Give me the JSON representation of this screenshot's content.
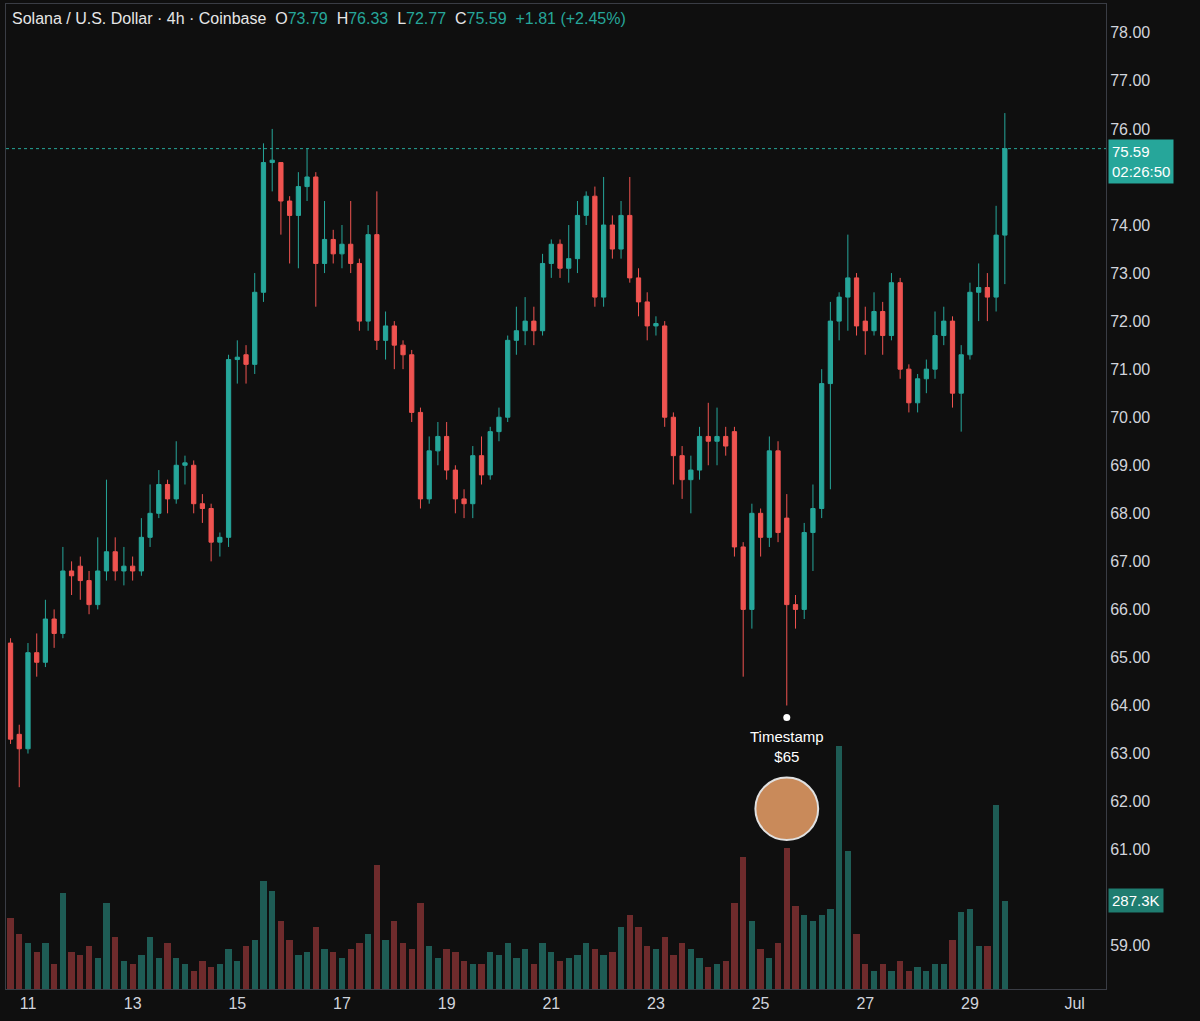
{
  "chart_data": {
    "type": "candlestick",
    "title": "Solana / U.S. Dollar · 4h · Coinbase",
    "ohlc_header": [
      [
        "O",
        "73.79"
      ],
      [
        "H",
        "76.33"
      ],
      [
        "L",
        "72.77"
      ],
      [
        "C",
        "75.59"
      ]
    ],
    "change": "+1.81 (+2.45%)",
    "x": [
      10.667,
      10.833,
      11,
      11.167,
      11.333,
      11.5,
      11.667,
      11.833,
      12,
      12.167,
      12.333,
      12.5,
      12.667,
      12.833,
      13,
      13.167,
      13.333,
      13.5,
      13.667,
      13.833,
      14,
      14.167,
      14.333,
      14.5,
      14.667,
      14.833,
      15,
      15.167,
      15.333,
      15.5,
      15.667,
      15.833,
      16,
      16.167,
      16.333,
      16.5,
      16.667,
      16.833,
      17,
      17.167,
      17.333,
      17.5,
      17.667,
      17.833,
      18,
      18.167,
      18.333,
      18.5,
      18.667,
      18.833,
      19,
      19.167,
      19.333,
      19.5,
      19.667,
      19.833,
      20,
      20.167,
      20.333,
      20.5,
      20.667,
      20.833,
      21,
      21.167,
      21.333,
      21.5,
      21.667,
      21.833,
      22,
      22.167,
      22.333,
      22.5,
      22.667,
      22.833,
      23,
      23.167,
      23.333,
      23.5,
      23.667,
      23.833,
      24,
      24.167,
      24.333,
      24.5,
      24.667,
      24.833,
      25,
      25.167,
      25.333,
      25.5,
      25.667,
      25.833,
      26,
      26.167,
      26.333,
      26.5,
      26.667,
      26.833,
      27,
      27.167,
      27.333,
      27.5,
      27.667,
      27.833,
      28,
      28.167,
      28.333,
      28.5,
      28.667,
      28.833,
      29,
      29.167,
      29.333,
      29.5,
      29.667
    ],
    "series": [
      {
        "type": "candlestick",
        "color": {
          "up": "#26a69a",
          "down": "#ef5350"
        },
        "open": [
          65.3,
          63.4,
          63.1,
          65.1,
          64.9,
          65.8,
          65.5,
          66.8,
          66.9,
          66.6,
          66.1,
          66.8,
          67.2,
          66.8,
          66.9,
          66.8,
          67.5,
          68.0,
          68.6,
          68.3,
          69.0,
          69.0,
          68.2,
          68.1,
          67.4,
          67.5,
          71.2,
          71.3,
          71.1,
          72.6,
          75.3,
          75.3,
          74.5,
          74.2,
          74.8,
          75.0,
          73.2,
          73.7,
          73.4,
          73.6,
          73.2,
          72.0,
          73.8,
          71.6,
          71.9,
          71.5,
          71.3,
          70.1,
          68.3,
          69.3,
          69.6,
          68.9,
          68.3,
          68.2,
          69.2,
          68.8,
          69.7,
          70.0,
          71.6,
          71.8,
          72.0,
          71.8,
          73.2,
          73.6,
          73.1,
          73.3,
          74.2,
          74.6,
          72.5,
          74.0,
          73.5,
          74.2,
          72.9,
          72.4,
          71.9,
          71.9,
          70.0,
          69.2,
          68.7,
          68.9,
          69.6,
          69.5,
          69.6,
          69.7,
          67.3,
          66.0,
          68.0,
          67.5,
          69.3,
          67.9,
          66.1,
          66.0,
          67.6,
          68.1,
          70.7,
          72.0,
          72.5,
          72.9,
          72.0,
          71.8,
          72.2,
          71.7,
          72.8,
          71.0,
          70.3,
          70.8,
          71.0,
          71.7,
          72.0,
          70.5,
          71.3,
          72.6,
          72.7,
          72.5,
          73.79
        ],
        "high": [
          65.4,
          63.6,
          65.3,
          65.5,
          66.2,
          66.0,
          67.3,
          67.0,
          67.1,
          66.8,
          67.5,
          68.7,
          67.5,
          67.3,
          67.1,
          67.9,
          68.6,
          68.9,
          68.7,
          69.5,
          69.2,
          69.1,
          68.4,
          68.2,
          67.6,
          71.3,
          71.6,
          71.5,
          73.0,
          75.7,
          76.0,
          75.3,
          74.6,
          75.1,
          75.6,
          75.1,
          74.5,
          73.9,
          74.0,
          74.5,
          73.3,
          74.0,
          74.7,
          72.2,
          72.0,
          71.6,
          71.4,
          70.2,
          69.6,
          69.9,
          69.9,
          69.0,
          68.5,
          69.4,
          69.6,
          69.8,
          70.2,
          71.7,
          72.3,
          72.5,
          72.3,
          73.4,
          73.7,
          73.7,
          74.0,
          74.5,
          74.7,
          74.8,
          75.0,
          74.2,
          74.5,
          75.0,
          73.1,
          72.6,
          72.1,
          72.0,
          70.1,
          69.4,
          69.2,
          69.8,
          70.3,
          70.2,
          69.8,
          69.8,
          67.4,
          68.2,
          68.1,
          69.6,
          69.5,
          68.4,
          66.3,
          67.8,
          68.6,
          71.0,
          72.4,
          72.6,
          73.8,
          73.0,
          72.3,
          72.6,
          72.4,
          73.0,
          72.9,
          71.1,
          70.9,
          71.2,
          72.2,
          72.3,
          72.1,
          71.5,
          72.8,
          73.2,
          73.0,
          74.4,
          76.33
        ],
        "low": [
          63.2,
          62.3,
          63.0,
          64.6,
          64.8,
          65.2,
          65.4,
          66.3,
          66.2,
          65.9,
          66.0,
          66.6,
          66.6,
          66.5,
          66.6,
          66.7,
          67.3,
          67.9,
          68.0,
          68.2,
          68.6,
          68.0,
          67.8,
          67.0,
          67.1,
          67.3,
          70.7,
          70.7,
          70.9,
          72.4,
          74.7,
          73.8,
          73.2,
          73.1,
          74.5,
          72.3,
          73.0,
          73.2,
          73.1,
          73.0,
          71.8,
          71.8,
          71.4,
          71.2,
          71.0,
          71.0,
          69.9,
          68.1,
          68.2,
          69.0,
          68.7,
          68.0,
          67.9,
          67.9,
          68.6,
          68.7,
          69.5,
          69.9,
          71.3,
          71.5,
          71.5,
          71.7,
          72.9,
          72.9,
          72.8,
          73.0,
          74.0,
          72.3,
          72.3,
          73.3,
          73.3,
          72.8,
          72.1,
          71.6,
          71.7,
          69.8,
          68.6,
          68.3,
          68.0,
          68.7,
          69.0,
          69.0,
          69.2,
          67.1,
          64.6,
          65.6,
          67.1,
          67.3,
          67.4,
          64.0,
          65.6,
          65.8,
          66.8,
          67.9,
          68.5,
          71.6,
          71.8,
          71.7,
          71.3,
          71.7,
          71.3,
          71.6,
          70.8,
          70.1,
          70.1,
          70.5,
          70.8,
          71.5,
          70.2,
          69.7,
          71.2,
          72.0,
          72.0,
          72.2,
          72.77
        ],
        "close": [
          63.3,
          63.1,
          65.1,
          64.9,
          65.8,
          65.5,
          66.8,
          66.7,
          66.6,
          66.1,
          66.8,
          67.2,
          66.8,
          66.9,
          66.8,
          67.5,
          68.0,
          68.6,
          68.3,
          69.0,
          69.05,
          68.2,
          68.1,
          67.4,
          67.5,
          71.2,
          71.25,
          71.1,
          72.6,
          75.3,
          75.35,
          74.5,
          74.2,
          74.8,
          75.0,
          73.2,
          73.7,
          73.4,
          73.6,
          73.2,
          72.0,
          73.8,
          71.6,
          71.9,
          71.5,
          71.3,
          70.1,
          68.3,
          69.3,
          69.6,
          68.9,
          68.3,
          68.2,
          69.2,
          68.8,
          69.7,
          70.0,
          71.6,
          71.8,
          72.0,
          71.8,
          73.2,
          73.6,
          73.1,
          73.3,
          74.2,
          74.6,
          72.5,
          74.0,
          73.5,
          74.2,
          72.9,
          72.4,
          71.9,
          71.95,
          70.0,
          69.2,
          68.7,
          68.9,
          69.6,
          69.5,
          69.6,
          69.4,
          67.3,
          66.0,
          68.0,
          67.5,
          69.3,
          67.6,
          66.1,
          66.0,
          67.6,
          68.1,
          70.7,
          72.0,
          72.5,
          72.9,
          71.9,
          71.8,
          72.2,
          71.7,
          72.8,
          71.0,
          70.3,
          70.8,
          71.0,
          71.7,
          72.0,
          70.5,
          71.3,
          72.6,
          72.7,
          72.5,
          73.79,
          75.59
        ]
      },
      {
        "type": "bar",
        "axis": "y2",
        "color": {
          "up": "#1e5c55",
          "down": "#6e2b2c"
        },
        "values": [
          230,
          180,
          150,
          120,
          150,
          80,
          313,
          120,
          110,
          140,
          100,
          281,
          170,
          90,
          80,
          110,
          170,
          100,
          150,
          100,
          80,
          60,
          90,
          70,
          80,
          130,
          90,
          140,
          160,
          352,
          320,
          220,
          160,
          110,
          120,
          200,
          130,
          120,
          100,
          130,
          150,
          180,
          404,
          160,
          220,
          150,
          130,
          280,
          140,
          100,
          130,
          120,
          90,
          80,
          80,
          120,
          110,
          150,
          100,
          130,
          80,
          150,
          120,
          90,
          100,
          110,
          150,
          130,
          110,
          120,
          200,
          240,
          200,
          140,
          130,
          170,
          110,
          150,
          130,
          100,
          70,
          80,
          90,
          280,
          430,
          220,
          130,
          100,
          150,
          459,
          270,
          240,
          220,
          240,
          260,
          791,
          449,
          180,
          80,
          60,
          80,
          60,
          90,
          60,
          70,
          60,
          80,
          80,
          160,
          250,
          260,
          140,
          140,
          598,
          287.3
        ]
      }
    ],
    "xlim": [
      10.58,
      31.6
    ],
    "xticks": [
      11,
      13,
      15,
      17,
      19,
      21,
      23,
      25,
      27,
      29,
      {
        "value": 31,
        "label": "Jul"
      }
    ],
    "ylim": [
      58.1,
      78.6
    ],
    "yticks": [
      {
        "value": 59,
        "label": "59.00"
      },
      {
        "value": 61,
        "label": "61.00"
      },
      {
        "value": 62,
        "label": "62.00"
      },
      {
        "value": 63,
        "label": "63.00"
      },
      {
        "value": 64,
        "label": "64.00"
      },
      {
        "value": 65,
        "label": "65.00"
      },
      {
        "value": 66,
        "label": "66.00"
      },
      {
        "value": 67,
        "label": "67.00"
      },
      {
        "value": 68,
        "label": "68.00"
      },
      {
        "value": 69,
        "label": "69.00"
      },
      {
        "value": 70,
        "label": "70.00"
      },
      {
        "value": 71,
        "label": "71.00"
      },
      {
        "value": 72,
        "label": "72.00"
      },
      {
        "value": 73,
        "label": "73.00"
      },
      {
        "value": 74,
        "label": "74.00"
      },
      {
        "value": 76,
        "label": "76.00"
      },
      {
        "value": 77,
        "label": "77.00"
      },
      {
        "value": 78,
        "label": "78.00"
      }
    ],
    "y2lim": [
      0,
      3200
    ],
    "grid": false,
    "point_note": {
      "text": [
        "Timestamp",
        "$65"
      ],
      "x": 25.5,
      "y": 63.75
    },
    "price_tag": {
      "text": [
        "75.59",
        "02:26:50"
      ],
      "y": 75.59
    },
    "volume_tag": {
      "text": [
        "287.3K"
      ],
      "y": 287.3,
      "axis": "y2"
    }
  }
}
